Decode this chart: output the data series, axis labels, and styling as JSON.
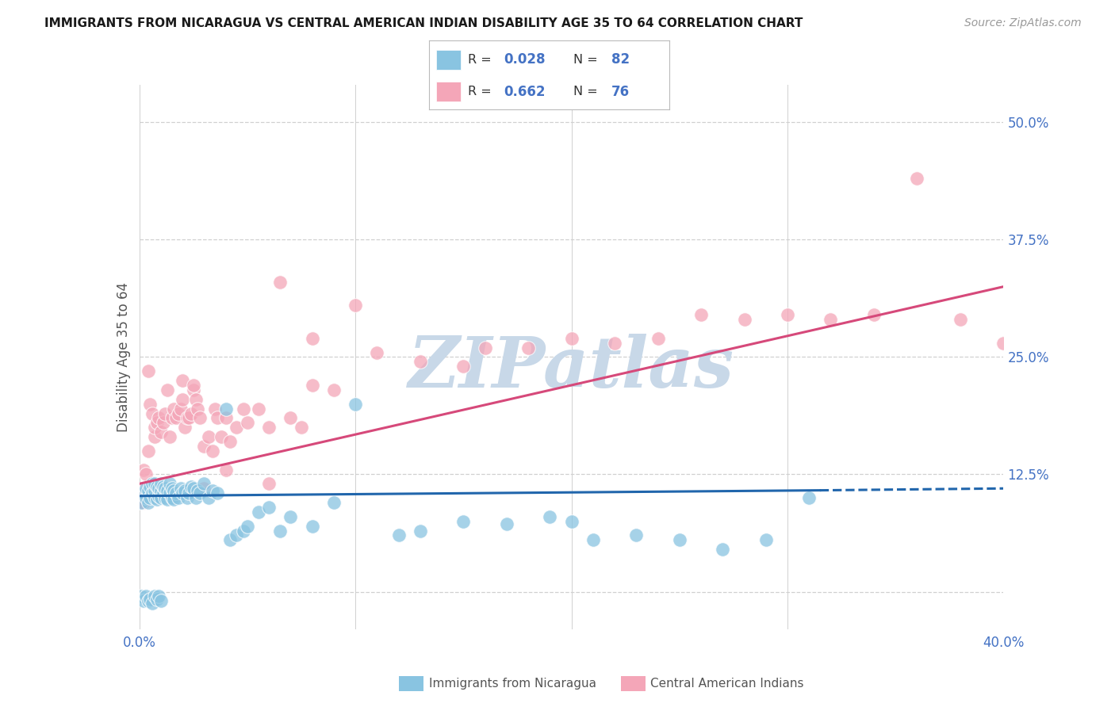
{
  "title": "IMMIGRANTS FROM NICARAGUA VS CENTRAL AMERICAN INDIAN DISABILITY AGE 35 TO 64 CORRELATION CHART",
  "source": "Source: ZipAtlas.com",
  "ylabel": "Disability Age 35 to 64",
  "xlim": [
    0.0,
    0.4
  ],
  "ylim": [
    -0.04,
    0.54
  ],
  "blue_R": "0.028",
  "blue_N": "82",
  "pink_R": "0.662",
  "pink_N": "76",
  "blue_dot_color": "#89c4e1",
  "pink_dot_color": "#f4a6b8",
  "blue_line_color": "#2166ac",
  "pink_line_color": "#d6497a",
  "background_color": "#ffffff",
  "grid_color": "#d0d0d0",
  "legend_R_N_color": "#4472c4",
  "title_color": "#1a1a1a",
  "source_color": "#999999",
  "ylabel_color": "#555555",
  "xtick_color": "#4472c4",
  "ytick_color": "#4472c4",
  "bottom_label_color": "#555555",
  "watermark_color": "#c8d8e8",
  "blue_line_x0": 0.0,
  "blue_line_x1": 0.315,
  "blue_line_y0": 0.102,
  "blue_line_y1": 0.108,
  "blue_line_dash_x0": 0.315,
  "blue_line_dash_x1": 0.4,
  "blue_line_dash_y0": 0.108,
  "blue_line_dash_y1": 0.11,
  "pink_line_x0": 0.0,
  "pink_line_x1": 0.4,
  "pink_line_y0": 0.115,
  "pink_line_y1": 0.325,
  "blue_x": [
    0.001,
    0.002,
    0.003,
    0.003,
    0.004,
    0.004,
    0.005,
    0.005,
    0.006,
    0.006,
    0.007,
    0.007,
    0.007,
    0.008,
    0.008,
    0.009,
    0.009,
    0.01,
    0.01,
    0.01,
    0.011,
    0.011,
    0.012,
    0.012,
    0.013,
    0.013,
    0.014,
    0.014,
    0.015,
    0.015,
    0.016,
    0.016,
    0.017,
    0.018,
    0.019,
    0.02,
    0.021,
    0.022,
    0.023,
    0.024,
    0.025,
    0.026,
    0.027,
    0.028,
    0.03,
    0.032,
    0.034,
    0.036,
    0.04,
    0.042,
    0.045,
    0.048,
    0.05,
    0.055,
    0.06,
    0.065,
    0.07,
    0.08,
    0.09,
    0.1,
    0.12,
    0.13,
    0.15,
    0.17,
    0.19,
    0.2,
    0.21,
    0.23,
    0.25,
    0.27,
    0.29,
    0.31,
    0.001,
    0.002,
    0.003,
    0.004,
    0.005,
    0.006,
    0.007,
    0.008,
    0.009,
    0.01
  ],
  "blue_y": [
    0.095,
    0.105,
    0.1,
    0.11,
    0.095,
    0.108,
    0.1,
    0.112,
    0.105,
    0.115,
    0.1,
    0.108,
    0.115,
    0.098,
    0.112,
    0.102,
    0.11,
    0.1,
    0.108,
    0.115,
    0.105,
    0.112,
    0.1,
    0.11,
    0.098,
    0.108,
    0.105,
    0.115,
    0.1,
    0.11,
    0.098,
    0.108,
    0.105,
    0.1,
    0.11,
    0.105,
    0.108,
    0.1,
    0.105,
    0.112,
    0.11,
    0.1,
    0.108,
    0.105,
    0.115,
    0.1,
    0.108,
    0.105,
    0.195,
    0.055,
    0.06,
    0.065,
    0.07,
    0.085,
    0.09,
    0.065,
    0.08,
    0.07,
    0.095,
    0.2,
    0.06,
    0.065,
    0.075,
    0.072,
    0.08,
    0.075,
    0.055,
    0.06,
    0.055,
    0.045,
    0.055,
    0.1,
    -0.005,
    -0.01,
    -0.005,
    -0.01,
    -0.008,
    -0.012,
    -0.005,
    -0.008,
    -0.005,
    -0.01
  ],
  "pink_x": [
    0.001,
    0.002,
    0.002,
    0.003,
    0.004,
    0.004,
    0.005,
    0.005,
    0.006,
    0.006,
    0.007,
    0.007,
    0.008,
    0.009,
    0.01,
    0.011,
    0.012,
    0.013,
    0.014,
    0.015,
    0.016,
    0.017,
    0.018,
    0.019,
    0.02,
    0.021,
    0.022,
    0.023,
    0.024,
    0.025,
    0.026,
    0.027,
    0.028,
    0.03,
    0.032,
    0.034,
    0.035,
    0.036,
    0.038,
    0.04,
    0.042,
    0.045,
    0.048,
    0.05,
    0.055,
    0.06,
    0.065,
    0.07,
    0.075,
    0.08,
    0.09,
    0.1,
    0.11,
    0.13,
    0.15,
    0.16,
    0.18,
    0.2,
    0.22,
    0.24,
    0.26,
    0.28,
    0.3,
    0.32,
    0.34,
    0.36,
    0.38,
    0.4,
    0.02,
    0.025,
    0.03,
    0.04,
    0.06,
    0.08,
    0.002,
    0.003
  ],
  "pink_y": [
    0.095,
    0.11,
    0.13,
    0.105,
    0.235,
    0.15,
    0.1,
    0.2,
    0.115,
    0.19,
    0.165,
    0.175,
    0.18,
    0.185,
    0.17,
    0.18,
    0.19,
    0.215,
    0.165,
    0.185,
    0.195,
    0.185,
    0.19,
    0.195,
    0.205,
    0.175,
    0.185,
    0.185,
    0.19,
    0.215,
    0.205,
    0.195,
    0.185,
    0.155,
    0.165,
    0.15,
    0.195,
    0.185,
    0.165,
    0.185,
    0.16,
    0.175,
    0.195,
    0.18,
    0.195,
    0.175,
    0.33,
    0.185,
    0.175,
    0.27,
    0.215,
    0.305,
    0.255,
    0.245,
    0.24,
    0.26,
    0.26,
    0.27,
    0.265,
    0.27,
    0.295,
    0.29,
    0.295,
    0.29,
    0.295,
    0.44,
    0.29,
    0.265,
    0.225,
    0.22,
    0.11,
    0.13,
    0.115,
    0.22,
    0.095,
    0.125
  ]
}
